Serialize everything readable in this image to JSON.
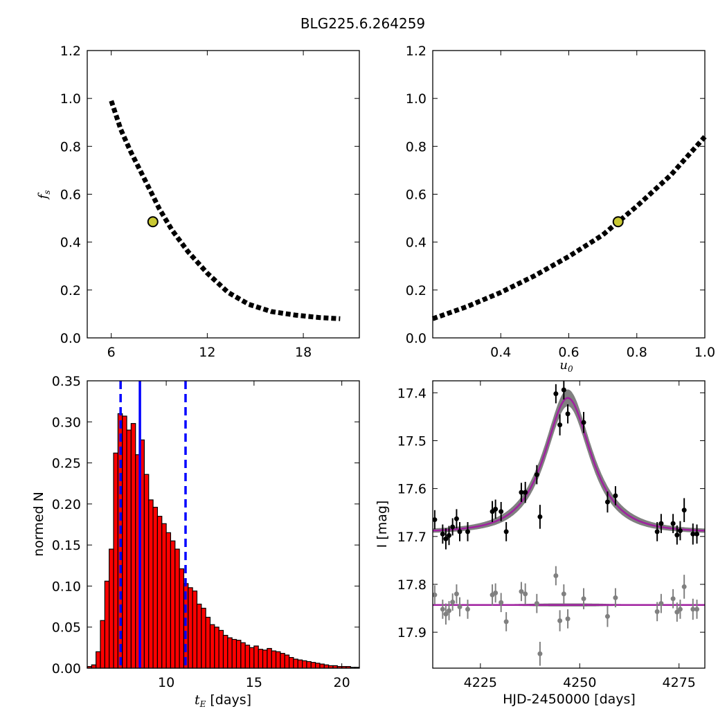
{
  "figure": {
    "title": "BLG225.6.264259"
  },
  "chart_data": [
    {
      "id": "fs-vs-tE",
      "type": "heatmap",
      "xlabel": "",
      "ylabel": "f_s",
      "xlim": [
        4.5,
        21.5
      ],
      "ylim": [
        0.0,
        1.2
      ],
      "xticks": [
        6,
        12,
        18
      ],
      "yticks": [
        0.0,
        0.2,
        0.4,
        0.6,
        0.8,
        1.0,
        1.2
      ],
      "colors": {
        "sigma3": "#0000ff",
        "sigma2": "#007f00",
        "sigma1": "#ff0000",
        "core": "#000000",
        "best": "#c8c832"
      },
      "ridge": [
        [
          6.0,
          0.99
        ],
        [
          6.6,
          0.87
        ],
        [
          7.2,
          0.78
        ],
        [
          7.8,
          0.7
        ],
        [
          8.4,
          0.62
        ],
        [
          9.0,
          0.54
        ],
        [
          9.8,
          0.45
        ],
        [
          10.8,
          0.36
        ],
        [
          12.0,
          0.27
        ],
        [
          13.3,
          0.19
        ],
        [
          14.6,
          0.14
        ],
        [
          16.0,
          0.11
        ],
        [
          17.5,
          0.095
        ],
        [
          19.0,
          0.085
        ],
        [
          20.3,
          0.08
        ]
      ],
      "best_fit": {
        "x": 8.6,
        "y": 0.485
      }
    },
    {
      "id": "fs-vs-u0",
      "type": "heatmap",
      "xlabel": "u_0",
      "ylabel": "",
      "xlim": [
        0.2,
        1.0
      ],
      "ylim": [
        0.0,
        1.2
      ],
      "xticks": [
        0.4,
        0.6,
        0.8,
        1.0
      ],
      "yticks": [
        0.0,
        0.2,
        0.4,
        0.6,
        0.8,
        1.0,
        1.2
      ],
      "ridge": [
        [
          0.2,
          0.08
        ],
        [
          0.3,
          0.13
        ],
        [
          0.4,
          0.19
        ],
        [
          0.5,
          0.26
        ],
        [
          0.6,
          0.34
        ],
        [
          0.7,
          0.43
        ],
        [
          0.8,
          0.55
        ],
        [
          0.9,
          0.68
        ],
        [
          1.0,
          0.84
        ]
      ],
      "best_fit": {
        "x": 0.745,
        "y": 0.485
      }
    },
    {
      "id": "tE-histogram",
      "type": "bar",
      "xlabel": "t_E  [days]",
      "ylabel": "normed N",
      "xlim": [
        5.5,
        21.0
      ],
      "ylim": [
        0.0,
        0.35
      ],
      "xticks": [
        10,
        15,
        20
      ],
      "yticks": [
        0.0,
        0.05,
        0.1,
        0.15,
        0.2,
        0.25,
        0.3,
        0.35
      ],
      "bin_start": 5.5,
      "bin_width": 0.25,
      "values": [
        0.002,
        0.004,
        0.02,
        0.058,
        0.106,
        0.145,
        0.262,
        0.31,
        0.307,
        0.29,
        0.298,
        0.26,
        0.278,
        0.236,
        0.205,
        0.196,
        0.185,
        0.176,
        0.165,
        0.155,
        0.145,
        0.121,
        0.103,
        0.098,
        0.094,
        0.078,
        0.073,
        0.062,
        0.053,
        0.05,
        0.046,
        0.04,
        0.037,
        0.035,
        0.034,
        0.031,
        0.028,
        0.025,
        0.027,
        0.023,
        0.022,
        0.024,
        0.021,
        0.02,
        0.018,
        0.016,
        0.013,
        0.011,
        0.01,
        0.009,
        0.008,
        0.007,
        0.006,
        0.005,
        0.004,
        0.003,
        0.003,
        0.002,
        0.002,
        0.002,
        0.001,
        0.001
      ],
      "bar_color": "#ff0000",
      "lines": [
        {
          "x": 7.4,
          "style": "dashed",
          "color": "#0000ff"
        },
        {
          "x": 8.5,
          "style": "solid",
          "color": "#0000ff"
        },
        {
          "x": 11.1,
          "style": "dashed",
          "color": "#0000ff"
        }
      ]
    },
    {
      "id": "light-curve",
      "type": "scatter",
      "xlabel": "HJD-2450000 [days]",
      "ylabel": "I [mag]",
      "xlim": [
        4213,
        4281.5
      ],
      "ylim": [
        17.975,
        17.375
      ],
      "xticks": [
        4225,
        4250,
        4275
      ],
      "yticks": [
        17.4,
        17.5,
        17.6,
        17.7,
        17.8,
        17.9
      ],
      "model": {
        "t0": 4247.0,
        "tE": 8.6,
        "u0": 0.745,
        "fs": 0.485,
        "baseline": 17.691,
        "residual_zero": 17.843,
        "model_color": "#a020a0",
        "band_color": "#808080"
      },
      "data_points": [
        {
          "x": 4213.5,
          "y": 17.665,
          "err": 0.02
        },
        {
          "x": 4215.5,
          "y": 17.695,
          "err": 0.02
        },
        {
          "x": 4216.3,
          "y": 17.705,
          "err": 0.022
        },
        {
          "x": 4217.1,
          "y": 17.698,
          "err": 0.02
        },
        {
          "x": 4218.0,
          "y": 17.68,
          "err": 0.018
        },
        {
          "x": 4219.0,
          "y": 17.663,
          "err": 0.02
        },
        {
          "x": 4219.8,
          "y": 17.69,
          "err": 0.02
        },
        {
          "x": 4221.8,
          "y": 17.69,
          "err": 0.02
        },
        {
          "x": 4228.0,
          "y": 17.648,
          "err": 0.022
        },
        {
          "x": 4228.8,
          "y": 17.643,
          "err": 0.02
        },
        {
          "x": 4230.2,
          "y": 17.648,
          "err": 0.02
        },
        {
          "x": 4231.5,
          "y": 17.69,
          "err": 0.02
        },
        {
          "x": 4235.3,
          "y": 17.608,
          "err": 0.02
        },
        {
          "x": 4236.3,
          "y": 17.608,
          "err": 0.022
        },
        {
          "x": 4240.0,
          "y": 17.659,
          "err": 0.025
        },
        {
          "x": 4239.2,
          "y": 17.571,
          "err": 0.02
        },
        {
          "x": 4244.0,
          "y": 17.402,
          "err": 0.02
        },
        {
          "x": 4245.0,
          "y": 17.467,
          "err": 0.022
        },
        {
          "x": 4246.0,
          "y": 17.394,
          "err": 0.02
        },
        {
          "x": 4247.0,
          "y": 17.444,
          "err": 0.02
        },
        {
          "x": 4251.0,
          "y": 17.462,
          "err": 0.022
        },
        {
          "x": 4257.0,
          "y": 17.628,
          "err": 0.022
        },
        {
          "x": 4259.0,
          "y": 17.615,
          "err": 0.02
        },
        {
          "x": 4269.5,
          "y": 17.69,
          "err": 0.02
        },
        {
          "x": 4270.5,
          "y": 17.673,
          "err": 0.02
        },
        {
          "x": 4273.5,
          "y": 17.673,
          "err": 0.02
        },
        {
          "x": 4274.5,
          "y": 17.697,
          "err": 0.02
        },
        {
          "x": 4275.3,
          "y": 17.688,
          "err": 0.02
        },
        {
          "x": 4276.3,
          "y": 17.645,
          "err": 0.025
        },
        {
          "x": 4278.5,
          "y": 17.695,
          "err": 0.022
        },
        {
          "x": 4279.5,
          "y": 17.695,
          "err": 0.02
        }
      ],
      "residual_points": [
        {
          "x": 4213.5,
          "y": 17.822,
          "err": 0.02
        },
        {
          "x": 4215.5,
          "y": 17.852,
          "err": 0.02
        },
        {
          "x": 4216.3,
          "y": 17.862,
          "err": 0.022
        },
        {
          "x": 4217.1,
          "y": 17.855,
          "err": 0.02
        },
        {
          "x": 4218.0,
          "y": 17.837,
          "err": 0.018
        },
        {
          "x": 4219.0,
          "y": 17.82,
          "err": 0.02
        },
        {
          "x": 4219.8,
          "y": 17.847,
          "err": 0.02
        },
        {
          "x": 4221.8,
          "y": 17.852,
          "err": 0.02
        },
        {
          "x": 4228.0,
          "y": 17.822,
          "err": 0.022
        },
        {
          "x": 4228.8,
          "y": 17.818,
          "err": 0.02
        },
        {
          "x": 4230.2,
          "y": 17.838,
          "err": 0.02
        },
        {
          "x": 4231.5,
          "y": 17.878,
          "err": 0.02
        },
        {
          "x": 4235.3,
          "y": 17.815,
          "err": 0.02
        },
        {
          "x": 4236.3,
          "y": 17.82,
          "err": 0.022
        },
        {
          "x": 4240.0,
          "y": 17.945,
          "err": 0.025
        },
        {
          "x": 4239.2,
          "y": 17.84,
          "err": 0.02
        },
        {
          "x": 4244.0,
          "y": 17.782,
          "err": 0.02
        },
        {
          "x": 4245.0,
          "y": 17.876,
          "err": 0.022
        },
        {
          "x": 4246.0,
          "y": 17.82,
          "err": 0.02
        },
        {
          "x": 4247.0,
          "y": 17.872,
          "err": 0.02
        },
        {
          "x": 4251.0,
          "y": 17.83,
          "err": 0.022
        },
        {
          "x": 4257.0,
          "y": 17.867,
          "err": 0.022
        },
        {
          "x": 4259.0,
          "y": 17.828,
          "err": 0.02
        },
        {
          "x": 4269.5,
          "y": 17.857,
          "err": 0.02
        },
        {
          "x": 4270.5,
          "y": 17.84,
          "err": 0.02
        },
        {
          "x": 4273.5,
          "y": 17.83,
          "err": 0.02
        },
        {
          "x": 4274.5,
          "y": 17.858,
          "err": 0.02
        },
        {
          "x": 4275.3,
          "y": 17.852,
          "err": 0.02
        },
        {
          "x": 4276.3,
          "y": 17.805,
          "err": 0.025
        },
        {
          "x": 4278.5,
          "y": 17.852,
          "err": 0.022
        },
        {
          "x": 4279.5,
          "y": 17.852,
          "err": 0.02
        }
      ]
    }
  ]
}
